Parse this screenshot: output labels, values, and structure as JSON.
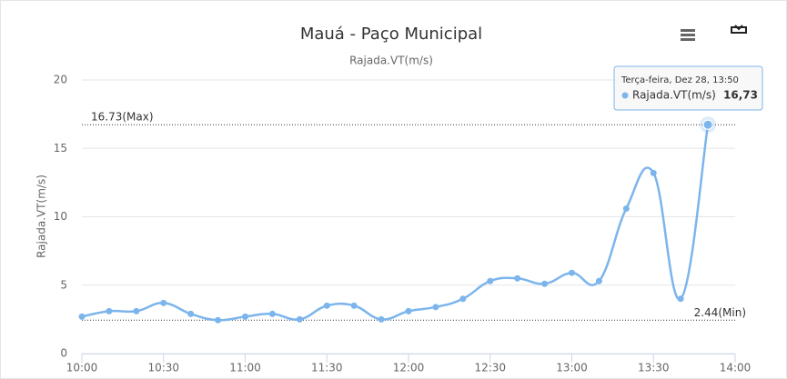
{
  "chart_data": {
    "type": "line",
    "title": "Mauá - Paço Municipal",
    "subtitle": "Rajada.VT(m/s)",
    "y_label": "Rajada.VT(m/s)",
    "x": [
      "10:00",
      "10:10",
      "10:20",
      "10:30",
      "10:40",
      "10:50",
      "11:00",
      "11:10",
      "11:20",
      "11:30",
      "11:40",
      "11:50",
      "12:00",
      "12:10",
      "12:20",
      "12:30",
      "12:40",
      "12:50",
      "13:00",
      "13:10",
      "13:20",
      "13:30",
      "13:40",
      "13:50"
    ],
    "series": [
      {
        "name": "Rajada.VT(m/s)",
        "color": "#7cb5ec",
        "values": [
          2.7,
          3.1,
          3.1,
          3.7,
          2.9,
          2.44,
          2.7,
          2.9,
          2.5,
          3.5,
          3.5,
          2.5,
          3.1,
          3.4,
          4.0,
          5.3,
          5.5,
          5.1,
          5.9,
          5.3,
          10.6,
          13.2,
          4.0,
          16.73
        ]
      }
    ],
    "xlim": [
      "10:00",
      "14:00"
    ],
    "xticks": [
      "10:00",
      "10:30",
      "11:00",
      "11:30",
      "12:00",
      "12:30",
      "13:00",
      "13:30",
      "14:00"
    ],
    "ylim": [
      0,
      20
    ],
    "yticks": [
      0,
      5,
      10,
      15,
      20
    ],
    "grid": true,
    "plot_lines": [
      {
        "value": 16.73,
        "label": "16.73(Max)"
      },
      {
        "value": 2.44,
        "label": "2.44(Min)"
      }
    ],
    "tooltip": {
      "header": "Terça-feira, Dez 28, 13:50",
      "point": 23,
      "value_label": "16,73"
    }
  }
}
